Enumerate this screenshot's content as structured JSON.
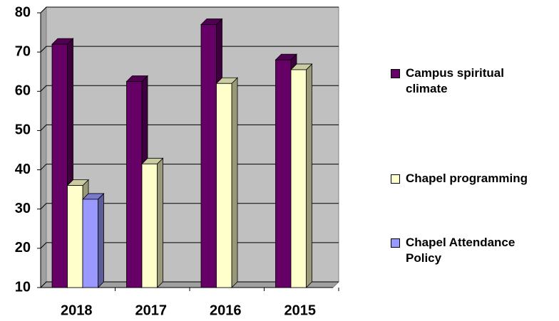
{
  "chart_data": {
    "type": "bar",
    "categories": [
      "2018",
      "2017",
      "2016",
      "2015"
    ],
    "series": [
      {
        "name": "Campus spiritual climate",
        "color": "#660066",
        "values": [
          72,
          62.5,
          77,
          68
        ]
      },
      {
        "name": "Chapel programming",
        "color": "#ffffcc",
        "values": [
          36,
          41.5,
          62,
          65.5
        ]
      },
      {
        "name": "Chapel Attendance Policy",
        "color": "#9999ff",
        "values": [
          32.5,
          null,
          null,
          null
        ]
      }
    ],
    "ylim": [
      10,
      80
    ],
    "yticks": [
      10,
      20,
      30,
      40,
      50,
      60,
      70,
      80
    ],
    "grid": true,
    "legend": "right"
  }
}
